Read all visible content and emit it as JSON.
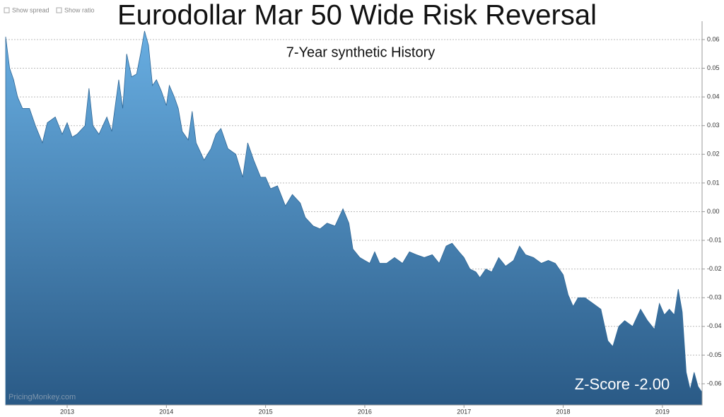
{
  "controls": [
    "Show spread",
    "Show ratio"
  ],
  "chart_data": {
    "type": "area",
    "title": "Eurodollar Mar 50 Wide Risk Reversal",
    "subtitle": "7-Year synthetic History",
    "annotation": "Z-Score -2.00",
    "watermark": "PricingMonkey.com",
    "color_top": "#68aee2",
    "color_bottom": "#2a5a86",
    "grid": true,
    "xlim": [
      2012.38,
      2019.4
    ],
    "xticks": [
      2013,
      2014,
      2015,
      2016,
      2017,
      2018,
      2019
    ],
    "ylim": [
      -0.0674,
      0.0664
    ],
    "yticks": [
      0.06,
      0.05,
      0.04,
      0.03,
      0.02,
      0.01,
      {
        "value": 0,
        "label": "0.00"
      },
      -0.01,
      -0.02,
      -0.03,
      -0.04,
      -0.05,
      -0.06
    ],
    "x": [
      2012.38,
      2012.42,
      2012.46,
      2012.5,
      2012.55,
      2012.62,
      2012.68,
      2012.75,
      2012.8,
      2012.88,
      2012.95,
      2013.0,
      2013.05,
      2013.1,
      2013.18,
      2013.22,
      2013.26,
      2013.32,
      2013.4,
      2013.45,
      2013.52,
      2013.56,
      2013.6,
      2013.65,
      2013.7,
      2013.74,
      2013.78,
      2013.82,
      2013.86,
      2013.9,
      2013.95,
      2014.0,
      2014.03,
      2014.08,
      2014.12,
      2014.16,
      2014.22,
      2014.26,
      2014.3,
      2014.38,
      2014.45,
      2014.5,
      2014.55,
      2014.62,
      2014.7,
      2014.77,
      2014.82,
      2014.88,
      2014.95,
      2015.0,
      2015.05,
      2015.12,
      2015.2,
      2015.27,
      2015.35,
      2015.4,
      2015.48,
      2015.55,
      2015.62,
      2015.7,
      2015.78,
      2015.84,
      2015.88,
      2015.95,
      2016.0,
      2016.05,
      2016.1,
      2016.15,
      2016.22,
      2016.3,
      2016.38,
      2016.45,
      2016.52,
      2016.6,
      2016.68,
      2016.75,
      2016.82,
      2016.88,
      2016.95,
      2017.0,
      2017.06,
      2017.12,
      2017.16,
      2017.22,
      2017.28,
      2017.35,
      2017.42,
      2017.5,
      2017.56,
      2017.62,
      2017.7,
      2017.78,
      2017.85,
      2017.92,
      2018.0,
      2018.05,
      2018.1,
      2018.15,
      2018.22,
      2018.3,
      2018.38,
      2018.45,
      2018.5,
      2018.56,
      2018.62,
      2018.7,
      2018.78,
      2018.85,
      2018.92,
      2018.97,
      2019.02,
      2019.07,
      2019.12,
      2019.16,
      2019.2,
      2019.24,
      2019.28,
      2019.32,
      2019.36,
      2019.4
    ],
    "series": [
      {
        "name": "Risk Reversal",
        "values": [
          0.061,
          0.05,
          0.046,
          0.04,
          0.036,
          0.036,
          0.03,
          0.024,
          0.031,
          0.033,
          0.027,
          0.031,
          0.026,
          0.027,
          0.03,
          0.043,
          0.03,
          0.027,
          0.033,
          0.028,
          0.046,
          0.036,
          0.055,
          0.047,
          0.048,
          0.055,
          0.063,
          0.058,
          0.044,
          0.046,
          0.042,
          0.037,
          0.044,
          0.04,
          0.036,
          0.028,
          0.025,
          0.035,
          0.024,
          0.018,
          0.022,
          0.027,
          0.029,
          0.022,
          0.02,
          0.012,
          0.024,
          0.018,
          0.012,
          0.012,
          0.008,
          0.009,
          0.002,
          0.006,
          0.003,
          -0.002,
          -0.005,
          -0.006,
          -0.004,
          -0.005,
          0.001,
          -0.004,
          -0.013,
          -0.016,
          -0.017,
          -0.018,
          -0.014,
          -0.018,
          -0.018,
          -0.016,
          -0.018,
          -0.014,
          -0.015,
          -0.016,
          -0.015,
          -0.018,
          -0.012,
          -0.011,
          -0.014,
          -0.016,
          -0.02,
          -0.021,
          -0.023,
          -0.02,
          -0.021,
          -0.016,
          -0.019,
          -0.017,
          -0.012,
          -0.015,
          -0.016,
          -0.018,
          -0.017,
          -0.018,
          -0.022,
          -0.029,
          -0.033,
          -0.03,
          -0.03,
          -0.032,
          -0.034,
          -0.045,
          -0.047,
          -0.04,
          -0.038,
          -0.04,
          -0.034,
          -0.038,
          -0.041,
          -0.032,
          -0.036,
          -0.034,
          -0.036,
          -0.027,
          -0.035,
          -0.056,
          -0.062,
          -0.056,
          -0.061,
          -0.063
        ]
      }
    ]
  }
}
